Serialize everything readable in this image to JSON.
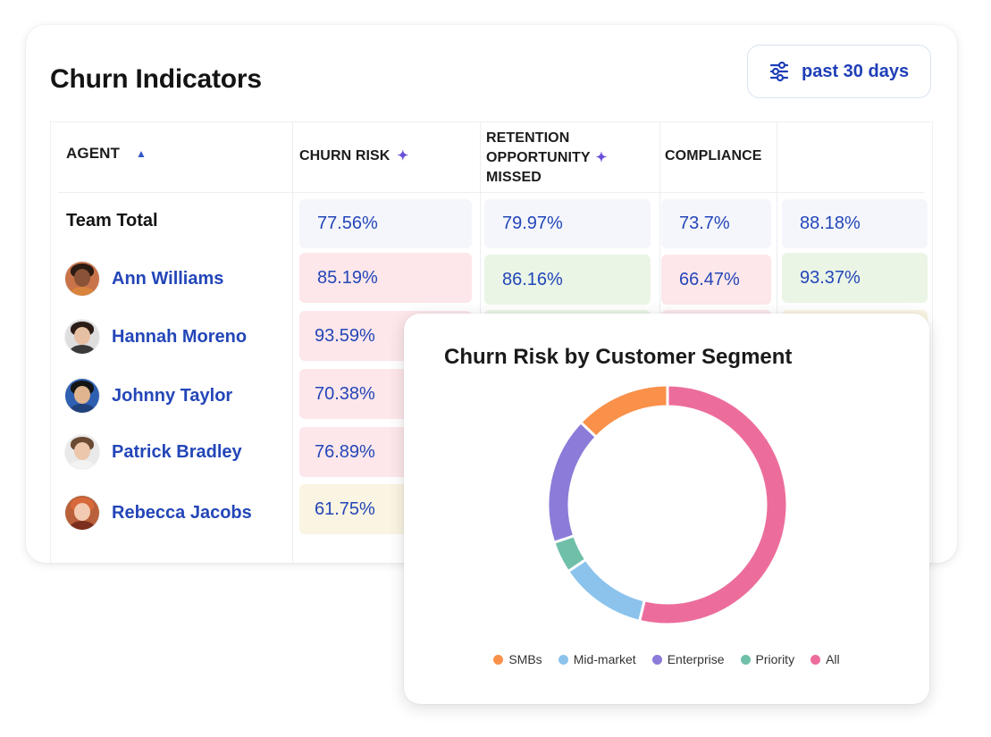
{
  "title": "Churn Indicators",
  "filter": {
    "label": "past 30 days",
    "icon": "sliders-icon"
  },
  "columns": {
    "agent": "AGENT",
    "churn_risk": "CHURN RISK",
    "retention": [
      "RETENTION",
      "OPPORTUNITY",
      "MISSED"
    ],
    "compliance": "COMPLIANCE",
    "sort_icon": "▲",
    "ai_icon": "✦"
  },
  "team_total": {
    "label": "Team Total",
    "values": [
      "77.56%",
      "79.97%",
      "73.7%",
      "88.18%"
    ]
  },
  "agents": [
    {
      "name": "Ann Williams",
      "values": [
        "85.19%",
        "86.16%",
        "66.47%",
        "93.37%"
      ]
    },
    {
      "name": "Hannah Moreno",
      "values": [
        "93.59%"
      ]
    },
    {
      "name": "Johnny Taylor",
      "values": [
        "70.38%"
      ]
    },
    {
      "name": "Patrick Bradley",
      "values": [
        "76.89%"
      ]
    },
    {
      "name": "Rebecca Jacobs",
      "values": [
        "61.75%"
      ]
    }
  ],
  "colors": {
    "neutral": "#f5f6fb",
    "bad": "#fde7ea",
    "good": "#eaf5e6",
    "warn": "#faf4e2",
    "accent": "#2346b8"
  },
  "chart_data": {
    "type": "pie",
    "title": "Churn Risk by Customer Segment",
    "categories": [
      "SMBs",
      "Mid-market",
      "Enterprise",
      "Priority",
      "All"
    ],
    "values": [
      12,
      11,
      16,
      4,
      50
    ],
    "colors": [
      "#f9914a",
      "#8bc3ec",
      "#8c7bd8",
      "#6fbfa9",
      "#ec6d9c"
    ],
    "legend": "bottom"
  }
}
